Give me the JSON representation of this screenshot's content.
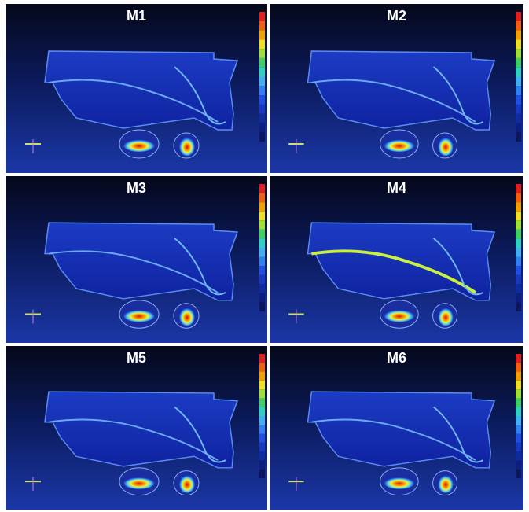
{
  "panels": [
    {
      "label": "M1"
    },
    {
      "label": "M2"
    },
    {
      "label": "M3"
    },
    {
      "label": "M4"
    },
    {
      "label": "M5"
    },
    {
      "label": "M6"
    }
  ]
}
